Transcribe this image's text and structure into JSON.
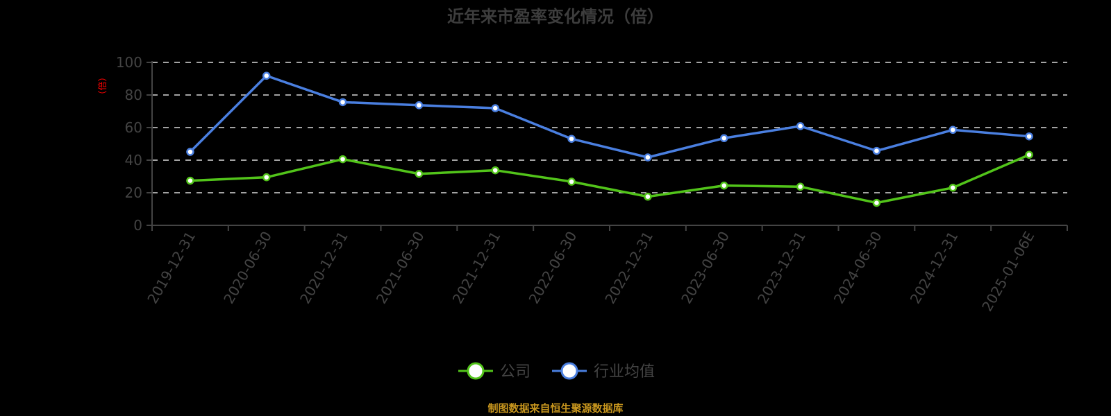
{
  "title": "近年来市盈率变化情况（倍）",
  "footer": "制图数据来自恒生聚源数据库",
  "y_axis": {
    "unit_label": "（倍）",
    "ticks": [
      "0",
      "20",
      "40",
      "60",
      "80",
      "100"
    ]
  },
  "legend": [
    {
      "label": "公司",
      "color": "#52c41a"
    },
    {
      "label": "行业均值",
      "color": "#4a7fe0"
    }
  ],
  "colors": {
    "company": "#52c41a",
    "industry": "#4a7fe0",
    "background": "#000000",
    "grid": "#d9d9d9",
    "footer": "#c8961e"
  },
  "chart_data": {
    "type": "line",
    "title": "近年来市盈率变化情况（倍）",
    "xlabel": "",
    "ylabel": "（倍）",
    "ylim": [
      0,
      100
    ],
    "grid": true,
    "legend_position": "bottom",
    "categories": [
      "2019-12-31",
      "2020-06-30",
      "2020-12-31",
      "2021-06-30",
      "2021-12-31",
      "2022-06-30",
      "2022-12-31",
      "2023-06-30",
      "2023-12-31",
      "2024-06-30",
      "2024-12-31",
      "2025-01-06E"
    ],
    "series": [
      {
        "name": "公司",
        "values": [
          27.4,
          29.5,
          40.6,
          31.6,
          33.8,
          26.8,
          17.6,
          24.4,
          23.7,
          13.8,
          23.1,
          43.3
        ]
      },
      {
        "name": "行业均值",
        "values": [
          45.1,
          91.8,
          75.6,
          73.7,
          71.9,
          53.1,
          41.7,
          53.5,
          60.9,
          45.7,
          58.6,
          54.6
        ]
      }
    ]
  }
}
